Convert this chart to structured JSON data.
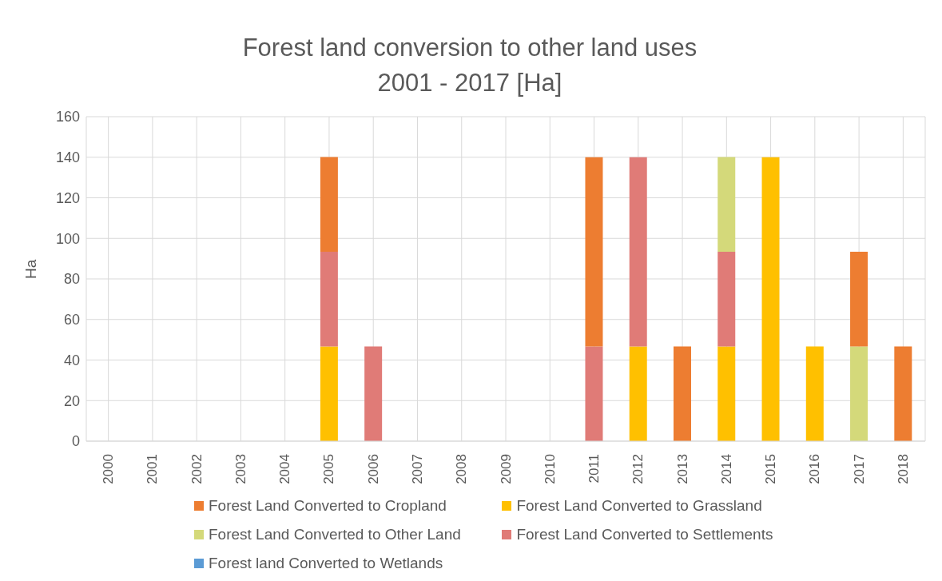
{
  "chart_data": {
    "type": "bar",
    "title": "Forest land conversion to other land uses\n2001 - 2017 [Ha]",
    "ylabel": "Ha",
    "categories": [
      "2000",
      "2001",
      "2002",
      "2003",
      "2004",
      "2005",
      "2006",
      "2007",
      "2008",
      "2009",
      "2010",
      "2011",
      "2012",
      "2013",
      "2014",
      "2015",
      "2016",
      "2017",
      "2018"
    ],
    "stacked": true,
    "ylim": [
      0,
      160
    ],
    "yticks": [
      0,
      20,
      40,
      60,
      80,
      100,
      120,
      140,
      160
    ],
    "grid": true,
    "legend": "bottom",
    "series": [
      {
        "name": "Forest Land Converted to Grassland",
        "color": "#ffc000",
        "values": [
          null,
          null,
          null,
          null,
          null,
          46.7,
          null,
          null,
          null,
          null,
          null,
          null,
          46.7,
          null,
          46.7,
          140,
          46.7,
          null,
          null
        ]
      },
      {
        "name": "Forest land Converted to Wetlands",
        "color": "#5b9bd5",
        "values": [
          null,
          null,
          null,
          null,
          null,
          null,
          null,
          null,
          null,
          null,
          null,
          null,
          null,
          null,
          null,
          null,
          null,
          null,
          null
        ]
      },
      {
        "name": "Forest Land Converted to Settlements",
        "color": "#e07b77",
        "values": [
          null,
          null,
          null,
          null,
          null,
          46.7,
          46.7,
          null,
          null,
          null,
          null,
          46.7,
          93.3,
          null,
          46.7,
          null,
          null,
          null,
          null
        ]
      },
      {
        "name": "Forest Land Converted to Other Land",
        "color": "#d4d97a",
        "values": [
          null,
          null,
          null,
          null,
          null,
          null,
          null,
          null,
          null,
          null,
          null,
          null,
          null,
          null,
          46.7,
          null,
          null,
          46.7,
          null
        ]
      },
      {
        "name": "Forest Land Converted to Cropland",
        "color": "#ed7d31",
        "values": [
          null,
          null,
          null,
          null,
          null,
          46.7,
          null,
          null,
          null,
          null,
          null,
          93.3,
          null,
          46.7,
          null,
          null,
          null,
          46.7,
          46.7
        ]
      }
    ]
  }
}
